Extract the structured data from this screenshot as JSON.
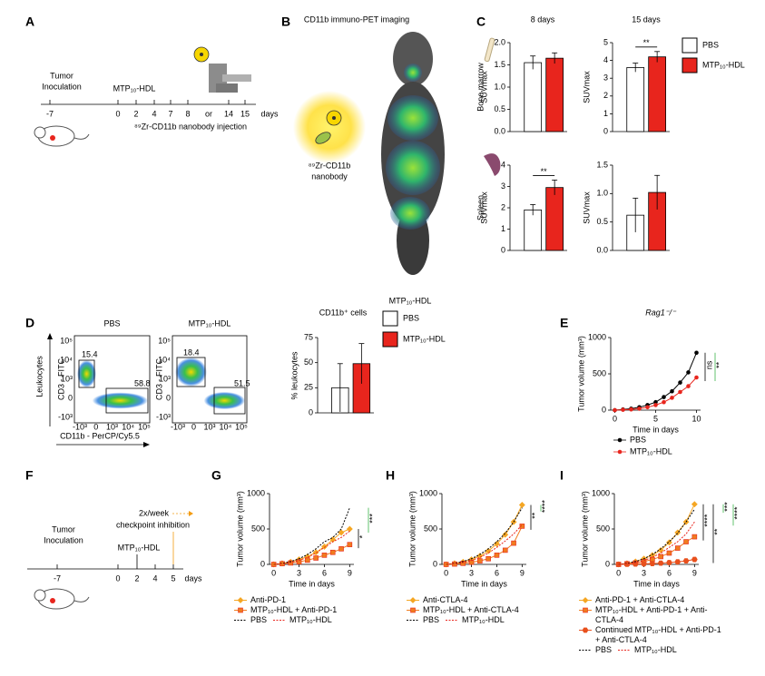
{
  "panel_a": {
    "label": "A",
    "inoculation": [
      "Tumor",
      "Inoculation"
    ],
    "treatment": "MTP₁₀-HDL",
    "timeline": [
      "-7",
      "0",
      "2",
      "4",
      "7",
      "8",
      "or",
      "14",
      "15"
    ],
    "timeline_colors": [
      "#000000",
      "#e8251d",
      "#e8251d",
      "#e8251d",
      "#1f8fc0",
      "#999999",
      "#000000",
      "#1f8fc0",
      "#999999"
    ],
    "unit": "days",
    "injection": "⁸⁹Zr-CD11b nanobody injection"
  },
  "panel_b": {
    "label": "B",
    "title": "CD11b immuno-PET imaging",
    "probe": [
      "⁸⁹Zr-CD11b",
      "nanobody"
    ],
    "caption": "MTP₁₀-HDL"
  },
  "panel_c": {
    "label": "C",
    "columns": [
      "8 days",
      "15 days"
    ],
    "rows": [
      "Bone marrow",
      "Spleen"
    ],
    "y_label": "SUVmax",
    "legend": [
      {
        "name": "PBS",
        "color": "#ffffff"
      },
      {
        "name": "MTP₁₀-HDL",
        "color": "#e8251d"
      }
    ],
    "charts": [
      {
        "ylim": [
          0,
          2
        ],
        "yticks": [
          {
            "value": 0,
            "label": "0.0"
          },
          {
            "value": 0.5,
            "label": "0.5"
          },
          {
            "value": 1,
            "label": "1.0"
          },
          {
            "value": 1.5,
            "label": "1.5"
          },
          {
            "value": 2,
            "label": "2.0"
          }
        ],
        "values": [
          1.55,
          1.65
        ],
        "errors": [
          0.15,
          0.12
        ]
      },
      {
        "ylim": [
          0,
          5
        ],
        "yticks": [
          0,
          1,
          2,
          3,
          4,
          5
        ],
        "values": [
          3.6,
          4.2
        ],
        "errors": [
          0.25,
          0.3
        ],
        "significance": "**"
      },
      {
        "ylim": [
          0,
          4
        ],
        "yticks": [
          0,
          1,
          2,
          3,
          4
        ],
        "values": [
          1.9,
          2.95
        ],
        "errors": [
          0.25,
          0.35
        ],
        "significance": "**"
      },
      {
        "ylim": [
          0,
          1.5
        ],
        "yticks": [
          {
            "value": 0,
            "label": "0.0"
          },
          {
            "value": 0.5,
            "label": "0.5"
          },
          {
            "value": 1,
            "label": "1.0"
          },
          {
            "value": 1.5,
            "label": "1.5"
          }
        ],
        "values": [
          0.62,
          1.02
        ],
        "errors": [
          0.3,
          0.3
        ]
      }
    ]
  },
  "panel_d": {
    "label": "D",
    "y_label": "Leukocytes",
    "y_axis": "CD3 - FITC",
    "x_axis": "CD11b - PerCP/Cy5.5",
    "flow_yticks": [
      "10⁵",
      "10⁴",
      "10³",
      "0",
      "-10³"
    ],
    "flow_xticks": [
      "-10³",
      "0",
      "10³",
      "10⁴",
      "10⁵"
    ],
    "flow": [
      {
        "title": "PBS",
        "gates": [
          "15.4",
          "58.8"
        ]
      },
      {
        "title": "MTP₁₀-HDL",
        "gates": [
          "18.4",
          "51.5"
        ]
      }
    ],
    "bar": {
      "title": "CD11b⁺ cells",
      "y_label": "% leukocytes",
      "ylim": [
        0,
        75
      ],
      "yticks": [
        0,
        25,
        50,
        75
      ],
      "values": [
        25,
        49
      ],
      "errors": [
        24,
        20
      ]
    },
    "legend": [
      {
        "name": "PBS",
        "color": "#ffffff"
      },
      {
        "name": "MTP₁₀-HDL",
        "color": "#e8251d"
      }
    ]
  },
  "panel_e": {
    "label": "E",
    "title": "Rag1⁻/⁻",
    "y_label": "Tumor volume (mm³)",
    "x_label": "Time in days",
    "ylim": [
      0,
      1000
    ],
    "yticks": [
      0,
      500,
      1000
    ],
    "xlim": [
      -0.5,
      10.5
    ],
    "xticks": [
      0,
      5,
      10
    ],
    "x": [
      0,
      1,
      2,
      3,
      4,
      5,
      6,
      7,
      8,
      9,
      10
    ],
    "series": [
      {
        "name": "PBS",
        "color": "#000000",
        "line_style": "solid",
        "marker": "circle",
        "values": [
          0,
          10,
          20,
          40,
          70,
          110,
          180,
          260,
          380,
          520,
          790
        ]
      },
      {
        "name": "MTP₁₀-HDL",
        "color": "#e8251d",
        "line_style": "solid",
        "marker": "circle",
        "values": [
          0,
          5,
          10,
          20,
          40,
          70,
          110,
          170,
          250,
          330,
          450
        ]
      }
    ],
    "significance": [
      {
        "text": "ns",
        "color": "#000000"
      },
      {
        "text": "**",
        "color": "#3cb44b"
      }
    ]
  },
  "panel_f": {
    "label": "F",
    "inoculation": [
      "Tumor",
      "Inoculation"
    ],
    "schedule": [
      "2x/week",
      "checkpoint inhibition"
    ],
    "treatment": "MTP₁₀-HDL",
    "timeline": [
      "-7",
      "0",
      "2",
      "4",
      "5"
    ],
    "timeline_colors": [
      "#000000",
      "#e8251d",
      "#e8251d",
      "#e8251d",
      "#f39c12"
    ],
    "unit": "days"
  },
  "panel_g": {
    "label": "G",
    "y_label": "Tumor volume (mm³)",
    "x_label": "Time in days",
    "ylim": [
      0,
      1000
    ],
    "yticks": [
      0,
      500,
      1000
    ],
    "xlim": [
      -0.5,
      9.5
    ],
    "xticks": [
      0,
      3,
      6,
      9
    ],
    "x": [
      0,
      1,
      2,
      3,
      4,
      5,
      6,
      7,
      8,
      9
    ],
    "series": [
      {
        "name": "Anti-PD-1",
        "color": "#f5a623",
        "line_style": "solid",
        "marker": "diamond",
        "values": [
          0,
          15,
          35,
          70,
          110,
          170,
          250,
          350,
          450,
          500
        ]
      },
      {
        "name": "MTP₁₀-HDL + Anti-PD-1",
        "color": "#f07c1f",
        "line_style": "solid",
        "marker": "square",
        "values": [
          0,
          10,
          20,
          35,
          60,
          90,
          130,
          170,
          220,
          280
        ]
      },
      {
        "name": "PBS",
        "color": "#000000",
        "line_style": "dotted",
        "marker": "none",
        "values": [
          0,
          15,
          40,
          80,
          140,
          220,
          320,
          380,
          500,
          800
        ]
      },
      {
        "name": "MTP₁₀-HDL",
        "color": "#e8251d",
        "line_style": "dotted",
        "marker": "none",
        "values": [
          0,
          10,
          25,
          55,
          100,
          160,
          240,
          320,
          380,
          470
        ]
      }
    ],
    "significance": [
      {
        "text": "*",
        "color": "#000000"
      },
      {
        "text": "***",
        "color": "#3cb44b"
      }
    ]
  },
  "panel_h": {
    "label": "H",
    "y_label": "Tumor volume (mm³)",
    "x_label": "Time in days",
    "ylim": [
      0,
      1000
    ],
    "yticks": [
      0,
      500,
      1000
    ],
    "xlim": [
      -0.5,
      9.5
    ],
    "xticks": [
      0,
      3,
      6,
      9
    ],
    "x": [
      0,
      1,
      2,
      3,
      4,
      5,
      6,
      7,
      8,
      9
    ],
    "series": [
      {
        "name": "Anti-CTLA-4",
        "color": "#f5a623",
        "line_style": "solid",
        "marker": "diamond",
        "values": [
          0,
          15,
          35,
          70,
          120,
          190,
          290,
          420,
          600,
          840
        ]
      },
      {
        "name": "MTP₁₀-HDL + Anti-CTLA-4",
        "color": "#f07c1f",
        "line_style": "solid",
        "marker": "square",
        "values": [
          0,
          5,
          15,
          30,
          50,
          80,
          130,
          200,
          300,
          540
        ]
      },
      {
        "name": "PBS",
        "color": "#000000",
        "line_style": "dotted",
        "marker": "none",
        "values": [
          0,
          15,
          40,
          80,
          140,
          220,
          320,
          440,
          600,
          800
        ]
      },
      {
        "name": "MTP₁₀-HDL",
        "color": "#e8251d",
        "line_style": "dotted",
        "marker": "none",
        "values": [
          0,
          10,
          25,
          55,
          100,
          160,
          240,
          330,
          430,
          560
        ]
      }
    ],
    "significance": [
      {
        "text": "**",
        "color": "#000000"
      },
      {
        "text": "****",
        "color": "#3cb44b"
      }
    ]
  },
  "panel_i": {
    "label": "I",
    "y_label": "Tumor volume (mm³)",
    "x_label": "Time in days",
    "ylim": [
      0,
      1000
    ],
    "yticks": [
      0,
      500,
      1000
    ],
    "xlim": [
      -0.5,
      9.5
    ],
    "xticks": [
      0,
      3,
      6,
      9
    ],
    "x": [
      0,
      1,
      2,
      3,
      4,
      5,
      6,
      7,
      8,
      9
    ],
    "series": [
      {
        "name": "Anti-PD-1 + Anti-CTLA-4",
        "color": "#f5a623",
        "line_style": "solid",
        "marker": "diamond",
        "values": [
          0,
          15,
          40,
          80,
          130,
          200,
          310,
          450,
          600,
          850
        ]
      },
      {
        "name": "MTP₁₀-HDL + Anti-PD-1 + Anti-CTLA-4",
        "color": "#f07c1f",
        "line_style": "solid",
        "marker": "square",
        "values": [
          0,
          10,
          20,
          40,
          70,
          110,
          160,
          230,
          320,
          390
        ]
      },
      {
        "name": "Continued MTP₁₀-HDL + Anti-PD-1 + Anti-CTLA-4",
        "color": "#e8501d",
        "line_style": "solid",
        "marker": "hexagon",
        "values": [
          0,
          2,
          5,
          8,
          12,
          18,
          26,
          36,
          50,
          70
        ]
      },
      {
        "name": "PBS",
        "color": "#000000",
        "line_style": "dotted",
        "marker": "none",
        "values": [
          0,
          15,
          40,
          80,
          140,
          220,
          320,
          440,
          600,
          780
        ]
      },
      {
        "name": "MTP₁₀-HDL",
        "color": "#e8251d",
        "line_style": "dotted",
        "marker": "none",
        "values": [
          0,
          10,
          25,
          55,
          100,
          160,
          240,
          320,
          430,
          600
        ]
      }
    ],
    "significance": [
      {
        "text": "****",
        "color": "#000000"
      },
      {
        "text": "**",
        "color": "#000000"
      },
      {
        "text": "***",
        "color": "#3cb44b"
      },
      {
        "text": "****",
        "color": "#3cb44b"
      }
    ]
  }
}
